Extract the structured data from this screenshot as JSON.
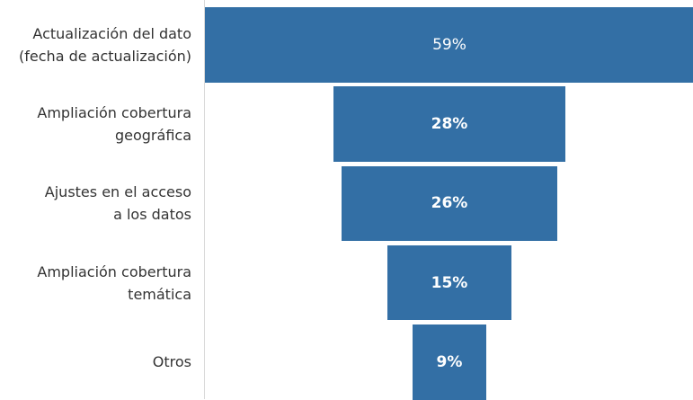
{
  "chart_data": {
    "type": "funnel",
    "categories": [
      "Actualización del dato\n(fecha de actualización)",
      "Ampliación cobertura\ngeográfica",
      "Ajustes en el acceso\na los datos",
      "Ampliación cobertura\ntemática",
      "Otros"
    ],
    "values": [
      59,
      28,
      26,
      15,
      9
    ],
    "value_labels": [
      "59%",
      "28%",
      "26%",
      "15%",
      "9%"
    ],
    "color": "#336fa5"
  }
}
